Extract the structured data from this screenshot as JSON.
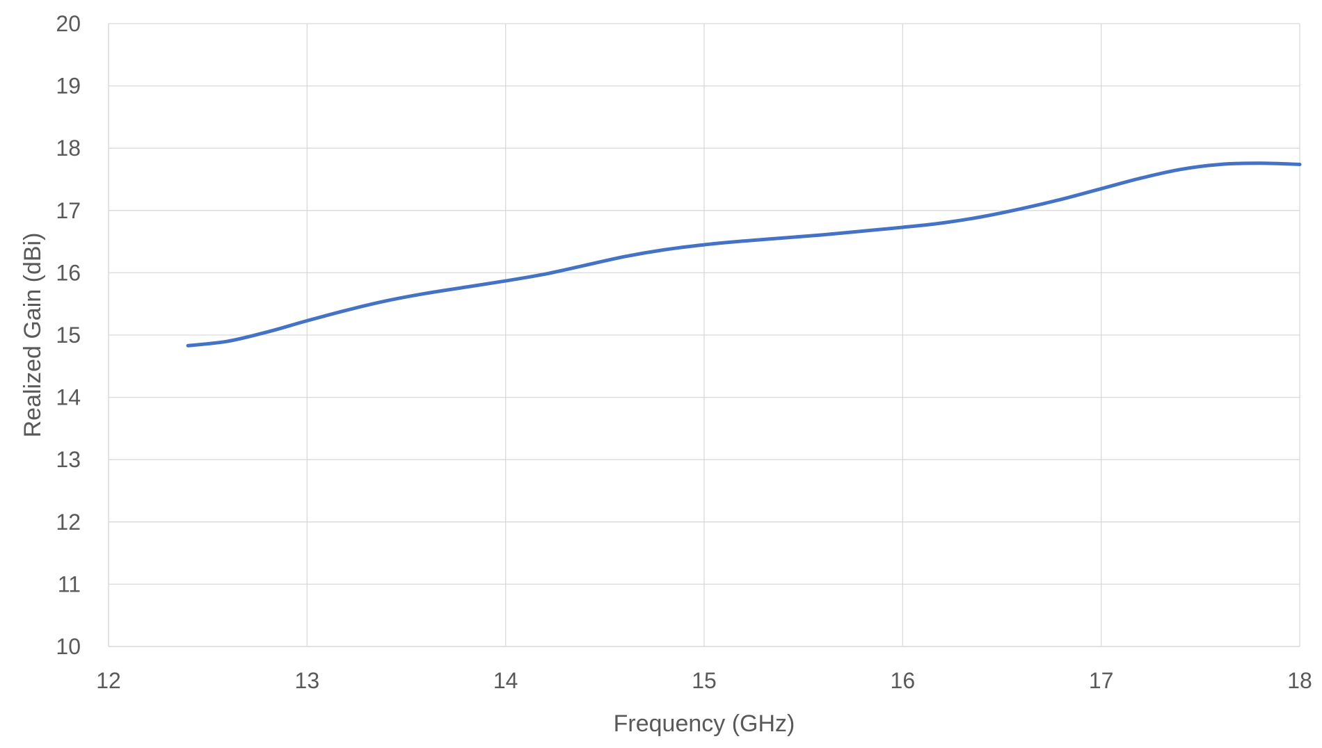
{
  "chart_data": {
    "type": "line",
    "title": "",
    "xlabel": "Frequency (GHz)",
    "ylabel": "Realized Gain (dBi)",
    "xlim": [
      12,
      18
    ],
    "ylim": [
      10,
      20
    ],
    "xticks": [
      12,
      13,
      14,
      15,
      16,
      17,
      18
    ],
    "yticks": [
      10,
      11,
      12,
      13,
      14,
      15,
      16,
      17,
      18,
      19,
      20
    ],
    "grid": true,
    "legend": "none",
    "series": [
      {
        "color": "#4472C4",
        "x": [
          12.4,
          12.6,
          12.8,
          13.0,
          13.2,
          13.4,
          13.6,
          13.8,
          14.0,
          14.2,
          14.4,
          14.6,
          14.8,
          15.0,
          15.2,
          15.4,
          15.6,
          15.8,
          16.0,
          16.2,
          16.4,
          16.6,
          16.8,
          17.0,
          17.2,
          17.4,
          17.6,
          17.8,
          18.0
        ],
        "y": [
          14.83,
          14.9,
          15.05,
          15.23,
          15.4,
          15.55,
          15.67,
          15.77,
          15.87,
          15.98,
          16.12,
          16.26,
          16.37,
          16.45,
          16.51,
          16.56,
          16.61,
          16.67,
          16.73,
          16.8,
          16.9,
          17.03,
          17.18,
          17.35,
          17.52,
          17.66,
          17.74,
          17.76,
          17.74
        ]
      }
    ]
  }
}
